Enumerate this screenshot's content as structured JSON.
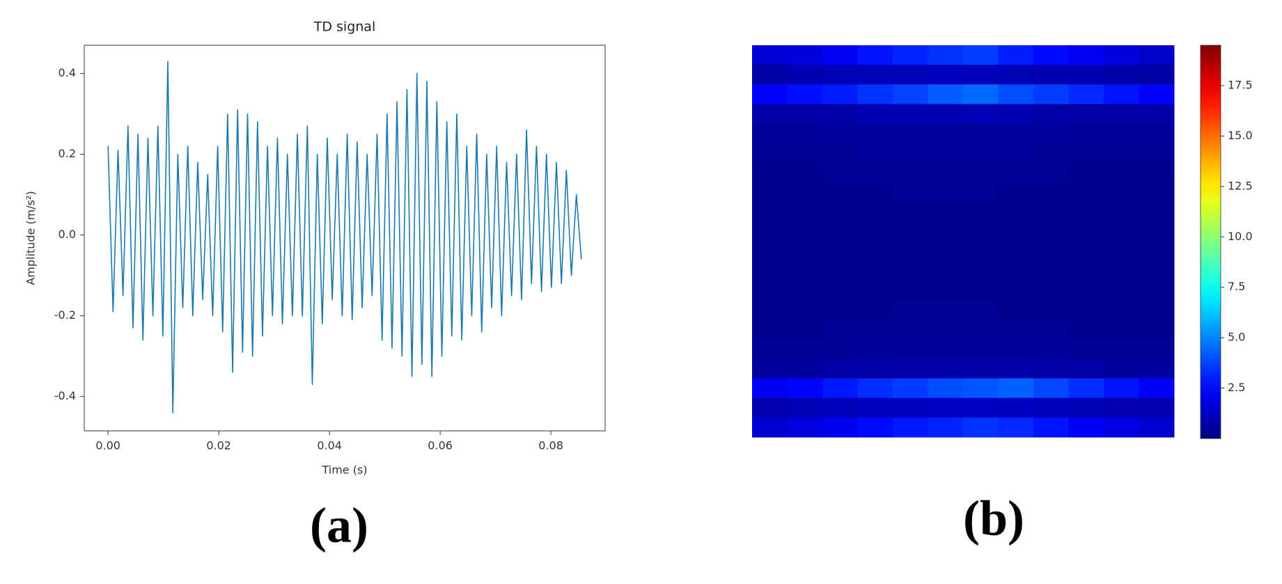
{
  "chart_data": [
    {
      "type": "line",
      "title": "TD signal",
      "xlabel": "Time (s)",
      "ylabel": "Amplitude (m/s²)",
      "caption": "(a)",
      "x": [
        0,
        0.0009,
        0.0018,
        0.0027,
        0.0036,
        0.0045,
        0.0054,
        0.0063,
        0.0072,
        0.0081,
        0.009,
        0.0099,
        0.0108,
        0.0117,
        0.0126,
        0.0135,
        0.0144,
        0.0153,
        0.0162,
        0.0171,
        0.018,
        0.0189,
        0.0198,
        0.0207,
        0.0216,
        0.0225,
        0.0234,
        0.0243,
        0.0252,
        0.0261,
        0.027,
        0.0279,
        0.0288,
        0.0297,
        0.0306,
        0.0315,
        0.0324,
        0.0333,
        0.0342,
        0.0351,
        0.036,
        0.0369,
        0.0378,
        0.0387,
        0.0396,
        0.0405,
        0.0414,
        0.0423,
        0.0432,
        0.0441,
        0.045,
        0.0459,
        0.0468,
        0.0477,
        0.0486,
        0.0495,
        0.0504,
        0.0513,
        0.0522,
        0.0531,
        0.054,
        0.0549,
        0.0558,
        0.0567,
        0.0576,
        0.0585,
        0.0594,
        0.0603,
        0.0612,
        0.0621,
        0.063,
        0.0639,
        0.0648,
        0.0657,
        0.0666,
        0.0675,
        0.0684,
        0.0693,
        0.0702,
        0.0711,
        0.072,
        0.0729,
        0.0738,
        0.0747,
        0.0756,
        0.0765,
        0.0774,
        0.0783,
        0.0792,
        0.0801,
        0.081,
        0.0819,
        0.0828,
        0.0837,
        0.0846,
        0.0855
      ],
      "series": [
        {
          "color": "#1b78ad",
          "values": [
            0.22,
            -0.19,
            0.21,
            -0.15,
            0.27,
            -0.23,
            0.25,
            -0.26,
            0.24,
            -0.2,
            0.27,
            -0.25,
            0.43,
            -0.44,
            0.2,
            -0.18,
            0.22,
            -0.2,
            0.18,
            -0.16,
            0.15,
            -0.2,
            0.22,
            -0.24,
            0.3,
            -0.34,
            0.31,
            -0.29,
            0.3,
            -0.3,
            0.28,
            -0.25,
            0.22,
            -0.2,
            0.24,
            -0.22,
            0.2,
            -0.2,
            0.25,
            -0.2,
            0.27,
            -0.37,
            0.2,
            -0.22,
            0.24,
            -0.16,
            0.2,
            -0.2,
            0.25,
            -0.21,
            0.23,
            -0.18,
            0.2,
            -0.15,
            0.25,
            -0.26,
            0.3,
            -0.28,
            0.33,
            -0.3,
            0.36,
            -0.35,
            0.4,
            -0.32,
            0.38,
            -0.35,
            0.33,
            -0.3,
            0.28,
            -0.25,
            0.3,
            -0.26,
            0.22,
            -0.2,
            0.25,
            -0.24,
            0.2,
            -0.18,
            0.22,
            -0.2,
            0.18,
            -0.15,
            0.2,
            -0.16,
            0.26,
            -0.12,
            0.22,
            -0.14,
            0.2,
            -0.13,
            0.18,
            -0.12,
            0.16,
            -0.1,
            0.1,
            -0.06
          ]
        }
      ],
      "xlim": [
        -0.0043,
        0.0898
      ],
      "ylim": [
        -0.485,
        0.47
      ],
      "xticks": [
        {
          "value": 0,
          "label": "0.00"
        },
        0.02,
        0.04,
        0.06,
        0.08
      ],
      "yticks": [
        -0.4,
        -0.2,
        {
          "value": 0,
          "label": "0.0"
        },
        0.2,
        0.4
      ]
    },
    {
      "type": "heatmap",
      "caption": "(b)",
      "colormap": "jet",
      "clim": [
        0,
        19.5
      ],
      "cticks": [
        2.5,
        {
          "value": 5,
          "label": "5.0"
        },
        7.5,
        {
          "value": 10,
          "label": "10.0"
        },
        12.5,
        {
          "value": 15,
          "label": "15.0"
        },
        17.5
      ],
      "values": [
        [
          1.6,
          1.8,
          2.2,
          2.8,
          3.1,
          3.4,
          3.6,
          3.0,
          2.6,
          2.2,
          1.8,
          1.4
        ],
        [
          0.8,
          0.9,
          1.0,
          1.1,
          1.0,
          1.2,
          1.1,
          1.0,
          0.9,
          0.9,
          0.8,
          0.7
        ],
        [
          2.4,
          2.7,
          3.0,
          3.4,
          3.7,
          4.2,
          4.4,
          3.9,
          3.6,
          3.2,
          2.8,
          2.4
        ],
        [
          0.7,
          0.8,
          0.8,
          0.9,
          0.9,
          0.9,
          1.0,
          0.9,
          0.8,
          0.8,
          0.7,
          0.7
        ],
        [
          0.5,
          0.5,
          0.6,
          0.6,
          0.6,
          0.6,
          0.6,
          0.6,
          0.6,
          0.5,
          0.5,
          0.5
        ],
        [
          0.4,
          0.4,
          0.4,
          0.5,
          0.5,
          0.5,
          0.5,
          0.5,
          0.4,
          0.4,
          0.4,
          0.4
        ],
        [
          0.3,
          0.3,
          0.4,
          0.4,
          0.4,
          0.4,
          0.4,
          0.4,
          0.4,
          0.3,
          0.3,
          0.3
        ],
        [
          0.3,
          0.3,
          0.3,
          0.3,
          0.4,
          0.4,
          0.4,
          0.3,
          0.3,
          0.3,
          0.3,
          0.3
        ],
        [
          0.3,
          0.3,
          0.3,
          0.3,
          0.3,
          0.3,
          0.3,
          0.3,
          0.3,
          0.3,
          0.3,
          0.3
        ],
        [
          0.3,
          0.3,
          0.3,
          0.3,
          0.3,
          0.3,
          0.3,
          0.3,
          0.3,
          0.3,
          0.3,
          0.3
        ],
        [
          0.3,
          0.3,
          0.3,
          0.3,
          0.3,
          0.3,
          0.3,
          0.3,
          0.3,
          0.3,
          0.3,
          0.3
        ],
        [
          0.3,
          0.3,
          0.3,
          0.3,
          0.3,
          0.3,
          0.3,
          0.3,
          0.3,
          0.3,
          0.3,
          0.3
        ],
        [
          0.3,
          0.3,
          0.3,
          0.3,
          0.3,
          0.3,
          0.3,
          0.3,
          0.3,
          0.3,
          0.3,
          0.3
        ],
        [
          0.3,
          0.3,
          0.3,
          0.3,
          0.4,
          0.4,
          0.4,
          0.3,
          0.3,
          0.3,
          0.3,
          0.3
        ],
        [
          0.3,
          0.3,
          0.4,
          0.4,
          0.4,
          0.4,
          0.4,
          0.4,
          0.4,
          0.3,
          0.3,
          0.3
        ],
        [
          0.4,
          0.4,
          0.4,
          0.5,
          0.5,
          0.5,
          0.5,
          0.5,
          0.5,
          0.4,
          0.4,
          0.4
        ],
        [
          0.6,
          0.6,
          0.7,
          0.7,
          0.8,
          0.8,
          0.8,
          0.8,
          0.7,
          0.7,
          0.6,
          0.6
        ],
        [
          2.2,
          2.5,
          2.9,
          3.3,
          3.6,
          3.9,
          4.1,
          4.3,
          3.8,
          3.3,
          2.8,
          2.3
        ],
        [
          0.9,
          1.0,
          1.1,
          1.2,
          1.2,
          1.3,
          1.3,
          1.2,
          1.1,
          1.0,
          0.9,
          0.9
        ],
        [
          1.5,
          1.8,
          2.1,
          2.6,
          2.9,
          3.1,
          3.4,
          3.2,
          2.8,
          2.3,
          1.9,
          1.5
        ]
      ]
    }
  ]
}
